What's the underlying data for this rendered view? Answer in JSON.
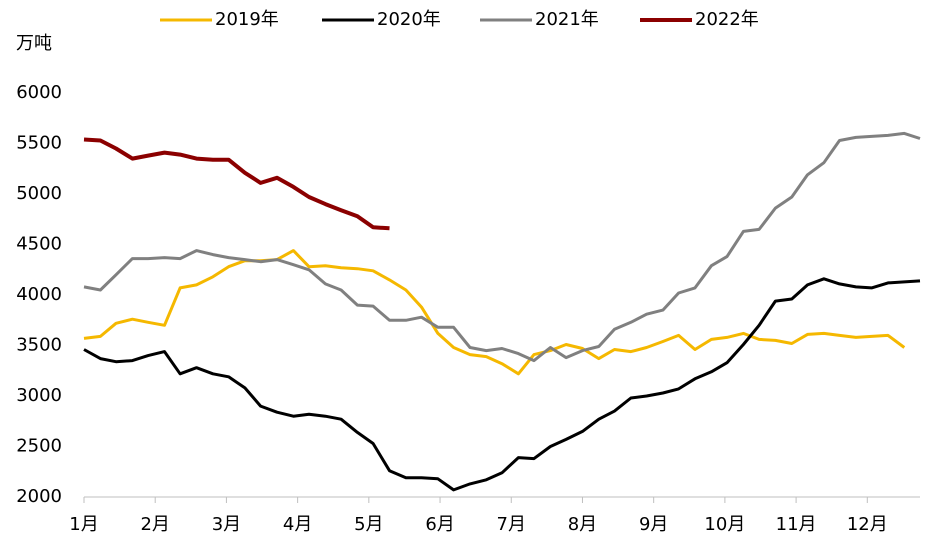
{
  "chart_data": {
    "type": "line",
    "y_label": "万吨",
    "x": [
      1.0,
      1.23,
      1.45,
      1.68,
      1.9,
      2.13,
      2.35,
      2.58,
      2.81,
      3.03,
      3.26,
      3.48,
      3.71,
      3.94,
      4.16,
      4.39,
      4.61,
      4.84,
      5.06,
      5.29,
      5.52,
      5.74,
      5.97,
      6.19,
      6.42,
      6.65,
      6.87,
      7.1,
      7.32,
      7.55,
      7.77,
      8.0,
      8.23,
      8.45,
      8.68,
      8.9,
      9.13,
      9.35,
      9.58,
      9.81,
      10.03,
      10.26,
      10.48,
      10.71,
      10.94,
      11.16,
      11.39,
      11.61,
      11.84,
      12.06,
      12.29,
      12.52,
      12.74
    ],
    "series": [
      {
        "name": "2019年",
        "color": "#f5b800",
        "values": [
          3570,
          3590,
          3720,
          3760,
          3730,
          3700,
          4070,
          4100,
          4180,
          4280,
          4340,
          4340,
          4350,
          4440,
          4280,
          4290,
          4270,
          4260,
          4240,
          4150,
          4050,
          3880,
          3620,
          3480,
          3410,
          3390,
          3320,
          3220,
          3410,
          3450,
          3510,
          3470,
          3370,
          3460,
          3440,
          3480,
          3540,
          3600,
          3460,
          3560,
          3580,
          3620,
          3560,
          3550,
          3520,
          3610,
          3620,
          3600,
          3580,
          3590,
          3600,
          3480,
          null
        ]
      },
      {
        "name": "2020年",
        "color": "#000000",
        "values": [
          3460,
          3370,
          3340,
          3350,
          3400,
          3440,
          3220,
          3280,
          3220,
          3190,
          3080,
          2900,
          2840,
          2800,
          2820,
          2800,
          2770,
          2640,
          2530,
          2260,
          2190,
          2190,
          2180,
          2070,
          2130,
          2170,
          2240,
          2390,
          2380,
          2500,
          2570,
          2650,
          2770,
          2850,
          2980,
          3000,
          3030,
          3070,
          3170,
          3240,
          3330,
          3510,
          3700,
          3940,
          3960,
          4100,
          4160,
          4110,
          4080,
          4070,
          4120,
          4130,
          4140
        ]
      },
      {
        "name": "2021年",
        "color": "#808080",
        "values": [
          4080,
          4050,
          4200,
          4360,
          4360,
          4370,
          4360,
          4440,
          4400,
          4370,
          4350,
          4330,
          4350,
          4300,
          4250,
          4110,
          4050,
          3900,
          3890,
          3750,
          3750,
          3780,
          3680,
          3680,
          3480,
          3450,
          3470,
          3420,
          3350,
          3480,
          3380,
          3450,
          3490,
          3660,
          3730,
          3810,
          3850,
          4020,
          4070,
          4290,
          4380,
          4630,
          4650,
          4860,
          4970,
          5190,
          5310,
          5530,
          5560,
          5570,
          5580,
          5600,
          5550
        ]
      },
      {
        "name": "2022年",
        "color": "#8b0000",
        "values": [
          5540,
          5530,
          5450,
          5350,
          5380,
          5410,
          5390,
          5350,
          5340,
          5340,
          5210,
          5110,
          5160,
          5070,
          4970,
          4900,
          4840,
          4780,
          4670,
          4660,
          null,
          null,
          null,
          null,
          null,
          null,
          null,
          null,
          null,
          null,
          null,
          null,
          null,
          null,
          null,
          null,
          null,
          null,
          null,
          null,
          null,
          null,
          null,
          null,
          null,
          null,
          null,
          null,
          null,
          null,
          null,
          null,
          null
        ]
      }
    ],
    "xlim": [
      1,
      12.74
    ],
    "xticks": [
      {
        "value": 1,
        "label": "1月"
      },
      {
        "value": 2,
        "label": "2月"
      },
      {
        "value": 3,
        "label": "3月"
      },
      {
        "value": 4,
        "label": "4月"
      },
      {
        "value": 5,
        "label": "5月"
      },
      {
        "value": 6,
        "label": "6月"
      },
      {
        "value": 7,
        "label": "7月"
      },
      {
        "value": 8,
        "label": "8月"
      },
      {
        "value": 9,
        "label": "9月"
      },
      {
        "value": 10,
        "label": "10月"
      },
      {
        "value": 11,
        "label": "11月"
      },
      {
        "value": 12,
        "label": "12月"
      }
    ],
    "ylim": [
      2000,
      6000
    ],
    "yticks": [
      2000,
      2500,
      3000,
      3500,
      4000,
      4500,
      5000,
      5500,
      6000
    ],
    "grid": false,
    "legend": "top"
  }
}
